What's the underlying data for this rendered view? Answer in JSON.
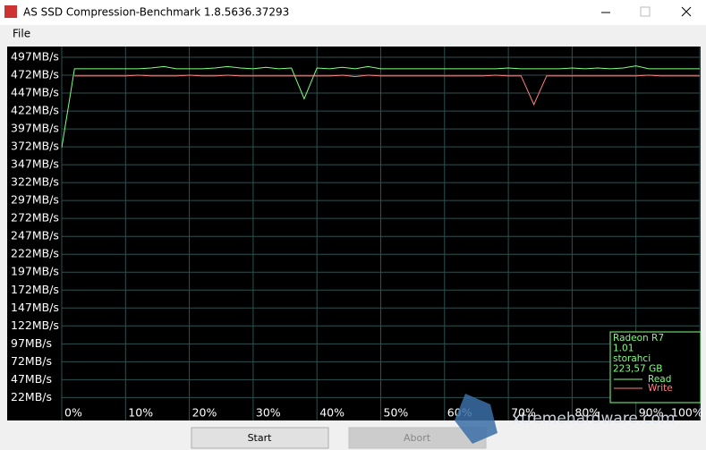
{
  "window": {
    "title": "AS SSD Compression-Benchmark 1.8.5636.37293",
    "menu": [
      "File"
    ],
    "buttons": [
      "Start",
      "Abort"
    ],
    "watermark": "xtremehardware.com"
  },
  "chart_data": {
    "type": "line",
    "x": [
      0,
      2,
      4,
      6,
      8,
      10,
      12,
      14,
      16,
      18,
      20,
      22,
      24,
      26,
      28,
      30,
      32,
      34,
      36,
      38,
      40,
      42,
      44,
      46,
      48,
      50,
      52,
      54,
      56,
      58,
      60,
      62,
      64,
      66,
      68,
      70,
      72,
      74,
      76,
      78,
      80,
      82,
      84,
      86,
      88,
      90,
      92,
      94,
      96,
      98,
      100
    ],
    "xlim": [
      0,
      100
    ],
    "xticks": [
      {
        "value": 0,
        "label": "0%"
      },
      {
        "value": 10,
        "label": "10%"
      },
      {
        "value": 20,
        "label": "20%"
      },
      {
        "value": 30,
        "label": "30%"
      },
      {
        "value": 40,
        "label": "40%"
      },
      {
        "value": 50,
        "label": "50%"
      },
      {
        "value": 60,
        "label": "60%"
      },
      {
        "value": 70,
        "label": "70%"
      },
      {
        "value": 80,
        "label": "80%"
      },
      {
        "value": 90,
        "label": "90%"
      },
      {
        "value": 100,
        "label": "100%"
      }
    ],
    "ylim": [
      -10,
      512
    ],
    "yticks": [
      {
        "value": 22,
        "label": "22MB/s"
      },
      {
        "value": 47,
        "label": "47MB/s"
      },
      {
        "value": 72,
        "label": "72MB/s"
      },
      {
        "value": 97,
        "label": "97MB/s"
      },
      {
        "value": 122,
        "label": "122MB/s"
      },
      {
        "value": 147,
        "label": "147MB/s"
      },
      {
        "value": 172,
        "label": "172MB/s"
      },
      {
        "value": 197,
        "label": "197MB/s"
      },
      {
        "value": 222,
        "label": "222MB/s"
      },
      {
        "value": 247,
        "label": "247MB/s"
      },
      {
        "value": 272,
        "label": "272MB/s"
      },
      {
        "value": 297,
        "label": "297MB/s"
      },
      {
        "value": 322,
        "label": "322MB/s"
      },
      {
        "value": 347,
        "label": "347MB/s"
      },
      {
        "value": 372,
        "label": "372MB/s"
      },
      {
        "value": 397,
        "label": "397MB/s"
      },
      {
        "value": 422,
        "label": "422MB/s"
      },
      {
        "value": 447,
        "label": "447MB/s"
      },
      {
        "value": 472,
        "label": "472MB/s"
      },
      {
        "value": 497,
        "label": "497MB/s"
      }
    ],
    "grid": true,
    "info": [
      "Radeon R7",
      "1.01",
      "storahci",
      "223,57 GB"
    ],
    "series": [
      {
        "name": "Read",
        "color": "#80ff80",
        "values": [
          371,
          481,
          481,
          481,
          481,
          481,
          481,
          482,
          484,
          481,
          481,
          481,
          482,
          484,
          482,
          481,
          483,
          481,
          482,
          439,
          482,
          481,
          483,
          481,
          484,
          481,
          481,
          481,
          481,
          481,
          481,
          481,
          481,
          481,
          481,
          482,
          481,
          481,
          481,
          481,
          482,
          481,
          482,
          481,
          482,
          485,
          481,
          481,
          481,
          481,
          481
        ]
      },
      {
        "name": "Write",
        "color": "#ff8080",
        "values": [
          null,
          471,
          471,
          471,
          471,
          471,
          472,
          471,
          471,
          471,
          472,
          471,
          471,
          472,
          471,
          471,
          471,
          471,
          471,
          471,
          471,
          471,
          472,
          470,
          472,
          471,
          471,
          471,
          471,
          471,
          471,
          471,
          471,
          471,
          472,
          471,
          471,
          431,
          471,
          471,
          471,
          471,
          471,
          471,
          471,
          471,
          472,
          471,
          471,
          471,
          471
        ]
      }
    ],
    "legend": "bottom-right"
  }
}
